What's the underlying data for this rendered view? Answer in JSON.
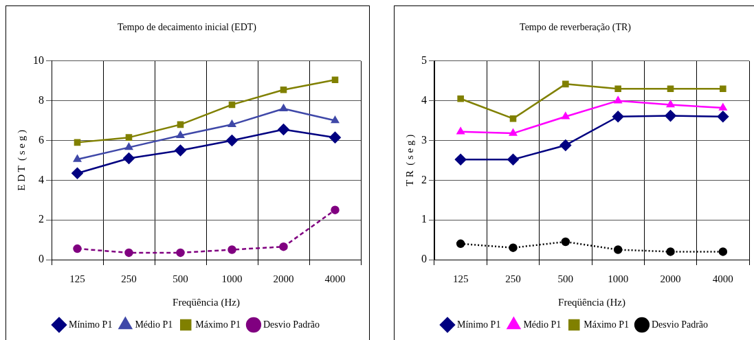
{
  "chart_data": [
    {
      "type": "line",
      "title": "Tempo de decaimento inicial (EDT)",
      "xlabel": "Freqüência (Hz)",
      "ylabel": "E D T  ( s e g )",
      "categories": [
        "125",
        "250",
        "500",
        "1000",
        "2000",
        "4000"
      ],
      "ylim": [
        0,
        10
      ],
      "yticks": [
        0,
        2,
        4,
        6,
        8,
        10
      ],
      "grid": true,
      "legend": "bottom",
      "series": [
        {
          "name": "Mínimo P1",
          "color": "#000080",
          "marker": "diamond",
          "line_style": "solid",
          "values": [
            4.35,
            5.1,
            5.5,
            6.0,
            6.55,
            6.15
          ]
        },
        {
          "name": "Médio P1",
          "color": "#3f48a8",
          "marker": "triangle",
          "line_style": "solid",
          "values": [
            5.05,
            5.65,
            6.25,
            6.8,
            7.6,
            7.0
          ]
        },
        {
          "name": "Máximo P1",
          "color": "#808000",
          "marker": "square",
          "line_style": "solid",
          "values": [
            5.9,
            6.15,
            6.8,
            7.8,
            8.55,
            9.05
          ]
        },
        {
          "name": "Desvio Padrão",
          "color": "#800080",
          "marker": "circle",
          "line_style": "dashed",
          "values": [
            0.55,
            0.35,
            0.35,
            0.5,
            0.65,
            2.5
          ]
        }
      ]
    },
    {
      "type": "line",
      "title": "Tempo de reverberação (TR)",
      "xlabel": "Freqüência (Hz)",
      "ylabel": "T R  ( s e g )",
      "categories": [
        "125",
        "250",
        "500",
        "1000",
        "2000",
        "4000"
      ],
      "ylim": [
        0,
        5
      ],
      "yticks": [
        0,
        1,
        2,
        3,
        4,
        5
      ],
      "grid": true,
      "legend": "bottom",
      "series": [
        {
          "name": "Mínimo P1",
          "color": "#000080",
          "marker": "diamond",
          "line_style": "solid",
          "values": [
            2.52,
            2.52,
            2.88,
            3.6,
            3.62,
            3.6
          ]
        },
        {
          "name": "Médio P1",
          "color": "#ff00ff",
          "marker": "triangle",
          "line_style": "solid",
          "values": [
            3.22,
            3.18,
            3.6,
            4.0,
            3.9,
            3.82
          ]
        },
        {
          "name": "Máximo P1",
          "color": "#808000",
          "marker": "square",
          "line_style": "solid",
          "values": [
            4.05,
            3.55,
            4.42,
            4.3,
            4.3,
            4.3
          ]
        },
        {
          "name": "Desvio Padrão",
          "color": "#000000",
          "marker": "circle",
          "line_style": "dotted",
          "values": [
            0.4,
            0.3,
            0.45,
            0.25,
            0.2,
            0.2
          ]
        }
      ]
    }
  ]
}
